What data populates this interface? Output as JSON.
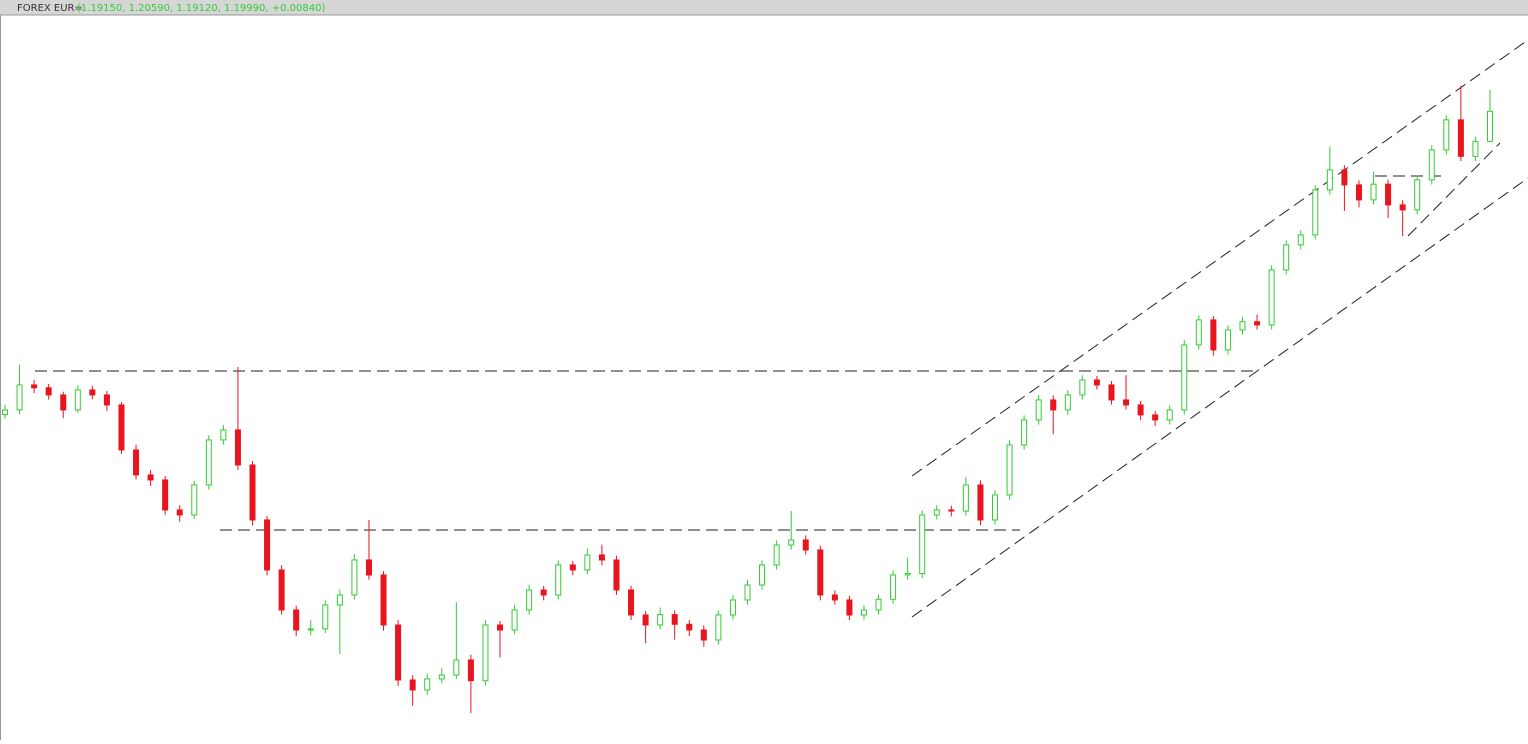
{
  "chart_data": {
    "type": "candlestick",
    "title": "FOREX EUR=",
    "subtitle": "(1.19150, 1.20590, 1.19120, 1.19990, +0.00840)",
    "up_color": "#33cc33",
    "down_color": "#e8141e",
    "ylim": [
      1.0239,
      1.2263
    ],
    "open": [
      1.115,
      1.1163,
      1.1233,
      1.1225,
      1.1205,
      1.1163,
      1.1219,
      1.1205,
      1.1177,
      1.1051,
      1.0981,
      1.0967,
      1.0883,
      1.0869,
      1.0953,
      1.1079,
      1.1107,
      1.1009,
      1.0855,
      1.0715,
      1.0603,
      1.0547,
      1.055,
      1.0617,
      1.0645,
      1.0743,
      1.0701,
      1.0561,
      1.0407,
      1.0379,
      1.041,
      1.0421,
      1.0463,
      1.0405,
      1.0561,
      1.0547,
      1.0603,
      1.0659,
      1.0645,
      1.0729,
      1.0715,
      1.0757,
      1.0743,
      1.0659,
      1.0589,
      1.0561,
      1.059,
      1.0563,
      1.0547,
      1.0519,
      1.0589,
      1.0631,
      1.0673,
      1.0729,
      1.0785,
      1.0799,
      1.0771,
      1.0645,
      1.0631,
      1.0589,
      1.0603,
      1.0633,
      1.0701,
      1.0705,
      1.0869,
      1.0883,
      1.088,
      1.0953,
      1.0855,
      1.0925,
      1.1065,
      1.1135,
      1.1191,
      1.1163,
      1.1205,
      1.1247,
      1.1233,
      1.1191,
      1.1177,
      1.1149,
      1.1135,
      1.1163,
      1.1345,
      1.1415,
      1.1331,
      1.1387,
      1.141,
      1.1401,
      1.1555,
      1.1625,
      1.1653,
      1.1779,
      1.1835,
      1.1793,
      1.1751,
      1.1795,
      1.1737,
      1.1723,
      1.1807,
      1.1891,
      1.1975,
      1.1873,
      1.1915
    ],
    "high": [
      1.1178,
      1.129,
      1.1247,
      1.1236,
      1.1214,
      1.1232,
      1.123,
      1.1216,
      1.1185,
      1.1066,
      1.0995,
      1.0978,
      1.0896,
      1.0965,
      1.1092,
      1.1121,
      1.1283,
      1.102,
      1.0866,
      1.0728,
      1.0615,
      1.0575,
      1.063,
      1.066,
      1.076,
      1.0855,
      1.0712,
      1.0575,
      1.042,
      1.0425,
      1.044,
      1.0625,
      1.0478,
      1.0575,
      1.0572,
      1.0618,
      1.0674,
      1.067,
      1.0742,
      1.074,
      1.0775,
      1.0786,
      1.0755,
      1.0671,
      1.06,
      1.061,
      1.0602,
      1.0575,
      1.056,
      1.0602,
      1.0645,
      1.0688,
      1.0742,
      1.0798,
      1.088,
      1.0812,
      1.0783,
      1.0658,
      1.0643,
      1.0616,
      1.0646,
      1.0714,
      1.075,
      1.0882,
      1.0896,
      1.0895,
      1.0975,
      1.0966,
      1.0938,
      1.1078,
      1.1148,
      1.1205,
      1.1204,
      1.1218,
      1.126,
      1.1258,
      1.1244,
      1.126,
      1.1188,
      1.116,
      1.1176,
      1.1358,
      1.1428,
      1.1426,
      1.14,
      1.1423,
      1.143,
      1.1568,
      1.1638,
      1.1666,
      1.1792,
      1.19,
      1.1848,
      1.1806,
      1.183,
      1.1808,
      1.175,
      1.182,
      1.1904,
      1.1988,
      1.207,
      1.1928,
      1.2059
    ],
    "low": [
      1.1138,
      1.1151,
      1.121,
      1.1192,
      1.114,
      1.1155,
      1.1193,
      1.116,
      1.104,
      1.0968,
      1.095,
      1.087,
      1.085,
      1.0858,
      1.094,
      1.1066,
      1.0995,
      1.084,
      1.07,
      1.059,
      1.053,
      1.0532,
      1.0538,
      1.048,
      1.0632,
      1.0688,
      1.0545,
      1.039,
      1.0335,
      1.0365,
      1.0398,
      1.041,
      1.0315,
      1.0392,
      1.047,
      1.0535,
      1.059,
      1.063,
      1.0633,
      1.07,
      1.0703,
      1.0728,
      1.0645,
      1.0575,
      1.051,
      1.0549,
      1.052,
      1.053,
      1.05,
      1.0506,
      1.0576,
      1.0618,
      1.066,
      1.0716,
      1.0772,
      1.0758,
      1.063,
      1.0618,
      1.0575,
      1.0576,
      1.059,
      1.062,
      1.0688,
      1.0692,
      1.0856,
      1.0865,
      1.0867,
      1.084,
      1.0842,
      1.0912,
      1.1052,
      1.1122,
      1.1095,
      1.115,
      1.1192,
      1.122,
      1.1178,
      1.1164,
      1.1135,
      1.1118,
      1.1122,
      1.115,
      1.1332,
      1.1315,
      1.1318,
      1.1374,
      1.1388,
      1.1388,
      1.1542,
      1.1612,
      1.164,
      1.1766,
      1.172,
      1.173,
      1.1738,
      1.17,
      1.165,
      1.171,
      1.1794,
      1.1878,
      1.186,
      1.186,
      1.1912
    ],
    "close": [
      1.1163,
      1.1233,
      1.1225,
      1.1205,
      1.1163,
      1.1219,
      1.1205,
      1.1177,
      1.1051,
      1.0981,
      1.0967,
      1.0883,
      1.0869,
      1.0953,
      1.1079,
      1.1107,
      1.1009,
      1.0855,
      1.0715,
      1.0603,
      1.0547,
      1.055,
      1.0617,
      1.0645,
      1.0743,
      1.0701,
      1.0561,
      1.0407,
      1.0379,
      1.041,
      1.0421,
      1.0463,
      1.0405,
      1.0561,
      1.0547,
      1.0603,
      1.0659,
      1.0645,
      1.0729,
      1.0715,
      1.0757,
      1.0743,
      1.0659,
      1.0589,
      1.0561,
      1.059,
      1.0563,
      1.0547,
      1.0519,
      1.0589,
      1.0631,
      1.0673,
      1.0729,
      1.0785,
      1.0799,
      1.0771,
      1.0645,
      1.0631,
      1.0589,
      1.0603,
      1.0633,
      1.0701,
      1.0705,
      1.0869,
      1.0883,
      1.088,
      1.0953,
      1.0855,
      1.0925,
      1.1065,
      1.1135,
      1.1191,
      1.1163,
      1.1205,
      1.1247,
      1.1233,
      1.1191,
      1.1177,
      1.1149,
      1.1135,
      1.1163,
      1.1345,
      1.1415,
      1.1331,
      1.1387,
      1.141,
      1.1401,
      1.1555,
      1.1625,
      1.1653,
      1.1779,
      1.1835,
      1.1793,
      1.1751,
      1.1795,
      1.1737,
      1.1723,
      1.1807,
      1.1891,
      1.1975,
      1.1873,
      1.1915,
      1.1999
    ]
  }
}
